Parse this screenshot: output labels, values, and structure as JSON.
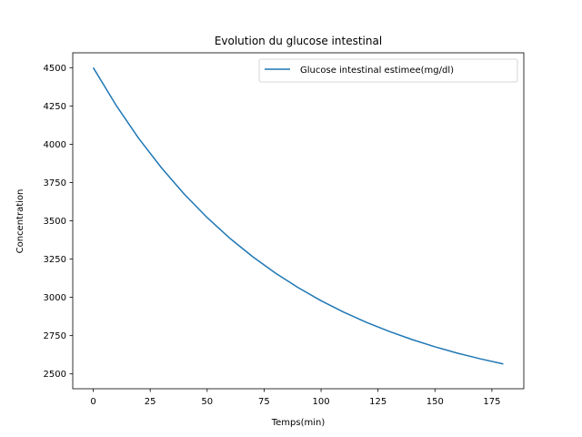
{
  "chart_data": {
    "type": "line",
    "title": "Evolution du glucose intestinal",
    "xlabel": "Temps(min)",
    "ylabel": "Concentration",
    "xlim": [
      -9,
      189
    ],
    "ylim": [
      2403,
      4597
    ],
    "xticks": [
      0,
      25,
      50,
      75,
      100,
      125,
      150,
      175
    ],
    "yticks": [
      2500,
      2750,
      3000,
      3250,
      3500,
      3750,
      4000,
      4250,
      4500
    ],
    "grid": false,
    "legend": "top-right",
    "series": [
      {
        "name": "Glucose intestinal estimee(mg/dl)",
        "color": "#1f77b4",
        "x": [
          0,
          10,
          20,
          30,
          40,
          50,
          60,
          70,
          80,
          90,
          100,
          110,
          120,
          130,
          140,
          150,
          160,
          170,
          180
        ],
        "values": [
          4500,
          4255,
          4037,
          3845,
          3673,
          3521,
          3385,
          3265,
          3158,
          3063,
          2978,
          2903,
          2836,
          2777,
          2724,
          2677,
          2635,
          2598,
          2565
        ]
      }
    ]
  }
}
